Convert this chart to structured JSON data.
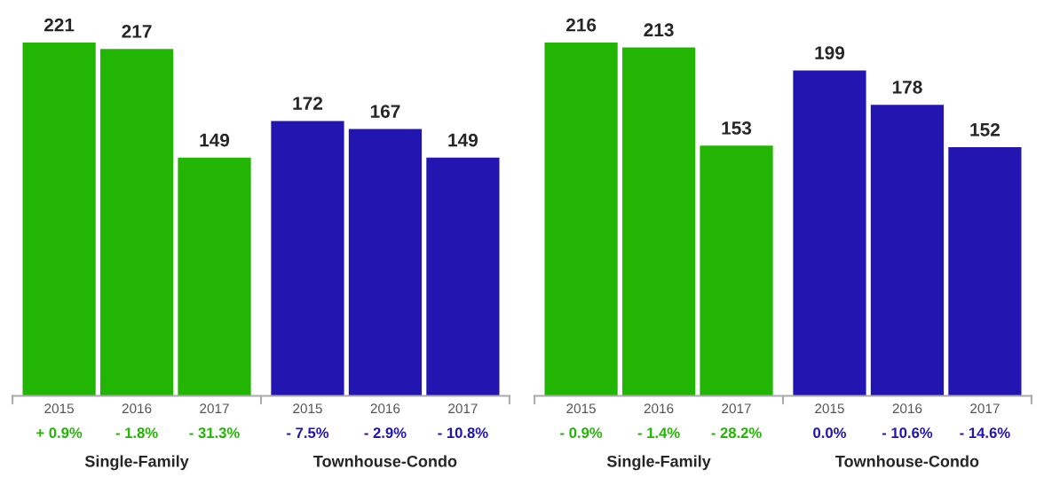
{
  "chart_data": [
    {
      "type": "bar",
      "categories": [
        "2015",
        "2016",
        "2017",
        "2015",
        "2016",
        "2017"
      ],
      "values": [
        221,
        217,
        149,
        172,
        167,
        149
      ],
      "colors": [
        "#22b503",
        "#22b503",
        "#22b503",
        "#2215b0",
        "#2215b0",
        "#2215b0"
      ],
      "data_labels": true,
      "annotations": [
        "+ 0.9%",
        "- 1.8%",
        "- 31.3%",
        "- 7.5%",
        "- 2.9%",
        "- 10.8%",
        "Single-Family",
        "Townhouse-Condo"
      ]
    },
    {
      "type": "bar",
      "categories": [
        "2015",
        "2016",
        "2017",
        "2015",
        "2016",
        "2017"
      ],
      "values": [
        216,
        213,
        153,
        199,
        178,
        152
      ],
      "colors": [
        "#22b503",
        "#22b503",
        "#22b503",
        "#2215b0",
        "#2215b0",
        "#2215b0"
      ],
      "data_labels": true,
      "annotations": [
        "- 0.9%",
        "- 1.4%",
        "- 28.2%",
        "0.0%",
        "- 10.6%",
        "- 14.6%",
        "Single-Family",
        "Townhouse-Condo"
      ]
    }
  ]
}
